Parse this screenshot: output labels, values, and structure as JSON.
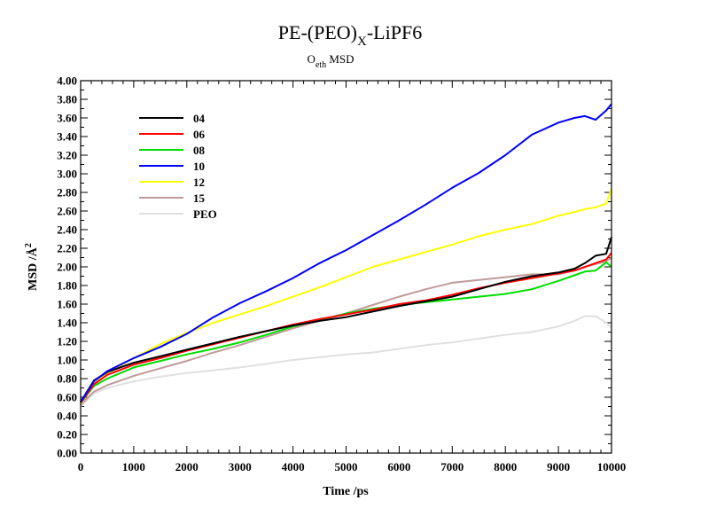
{
  "chart_data": {
    "type": "line",
    "title_parts": [
      "PE-(PEO)",
      "X",
      "-LiPF6"
    ],
    "subtitle_parts": [
      "O",
      "eth",
      " MSD"
    ],
    "xlabel": "Time /ps",
    "ylabel_parts": [
      "MSD /Å",
      "2"
    ],
    "xlim": [
      0,
      10000
    ],
    "ylim": [
      0,
      4
    ],
    "x_ticks": [
      0,
      1000,
      2000,
      3000,
      4000,
      5000,
      6000,
      7000,
      8000,
      9000,
      10000
    ],
    "y_ticks": [
      "0.00",
      "0.20",
      "0.40",
      "0.60",
      "0.80",
      "1.00",
      "1.20",
      "1.40",
      "1.60",
      "1.80",
      "2.00",
      "2.20",
      "2.40",
      "2.60",
      "2.80",
      "3.00",
      "3.20",
      "3.40",
      "3.60",
      "3.80",
      "4.00"
    ],
    "legend_position": "upper-left",
    "grid": false,
    "x": [
      0,
      250,
      500,
      1000,
      1500,
      2000,
      2500,
      3000,
      3500,
      4000,
      4500,
      5000,
      5500,
      6000,
      6500,
      7000,
      7500,
      8000,
      8500,
      9000,
      9300,
      9500,
      9700,
      9900,
      10000
    ],
    "series": [
      {
        "name": "04",
        "color": "#000000",
        "values": [
          0.55,
          0.78,
          0.87,
          0.97,
          1.04,
          1.11,
          1.18,
          1.25,
          1.31,
          1.37,
          1.42,
          1.46,
          1.52,
          1.58,
          1.63,
          1.68,
          1.76,
          1.84,
          1.9,
          1.94,
          1.98,
          2.04,
          2.12,
          2.14,
          2.32
        ]
      },
      {
        "name": "06",
        "color": "#ff0000",
        "values": [
          0.54,
          0.74,
          0.84,
          0.95,
          1.02,
          1.1,
          1.17,
          1.24,
          1.31,
          1.38,
          1.44,
          1.49,
          1.54,
          1.6,
          1.64,
          1.7,
          1.77,
          1.83,
          1.88,
          1.93,
          1.96,
          2.0,
          2.04,
          2.08,
          2.15
        ]
      },
      {
        "name": "08",
        "color": "#00dd00",
        "values": [
          0.54,
          0.72,
          0.8,
          0.92,
          0.99,
          1.06,
          1.12,
          1.19,
          1.27,
          1.36,
          1.43,
          1.5,
          1.55,
          1.59,
          1.62,
          1.65,
          1.68,
          1.71,
          1.76,
          1.85,
          1.91,
          1.95,
          1.96,
          2.05,
          2.0
        ]
      },
      {
        "name": "10",
        "color": "#0000ff",
        "values": [
          0.55,
          0.77,
          0.88,
          1.02,
          1.14,
          1.28,
          1.46,
          1.61,
          1.74,
          1.88,
          2.04,
          2.18,
          2.34,
          2.5,
          2.67,
          2.85,
          3.01,
          3.2,
          3.42,
          3.55,
          3.6,
          3.62,
          3.58,
          3.68,
          3.75
        ]
      },
      {
        "name": "12",
        "color": "#ffff00",
        "values": [
          0.53,
          0.74,
          0.86,
          1.02,
          1.17,
          1.29,
          1.4,
          1.49,
          1.58,
          1.68,
          1.78,
          1.89,
          2.0,
          2.08,
          2.16,
          2.24,
          2.33,
          2.4,
          2.46,
          2.55,
          2.59,
          2.62,
          2.64,
          2.68,
          2.84
        ]
      },
      {
        "name": "15",
        "color": "#c09a9a",
        "values": [
          0.52,
          0.66,
          0.73,
          0.83,
          0.91,
          0.99,
          1.08,
          1.16,
          1.25,
          1.34,
          1.42,
          1.5,
          1.59,
          1.68,
          1.76,
          1.83,
          1.86,
          1.89,
          1.92,
          1.92,
          1.96,
          2.0,
          2.03,
          2.06,
          2.1
        ]
      },
      {
        "name": "PEO",
        "color": "#e0e0e0",
        "values": [
          0.5,
          0.64,
          0.7,
          0.77,
          0.82,
          0.86,
          0.89,
          0.92,
          0.96,
          1.0,
          1.03,
          1.06,
          1.08,
          1.12,
          1.16,
          1.19,
          1.23,
          1.27,
          1.3,
          1.36,
          1.42,
          1.47,
          1.47,
          1.4,
          1.35
        ]
      }
    ]
  }
}
